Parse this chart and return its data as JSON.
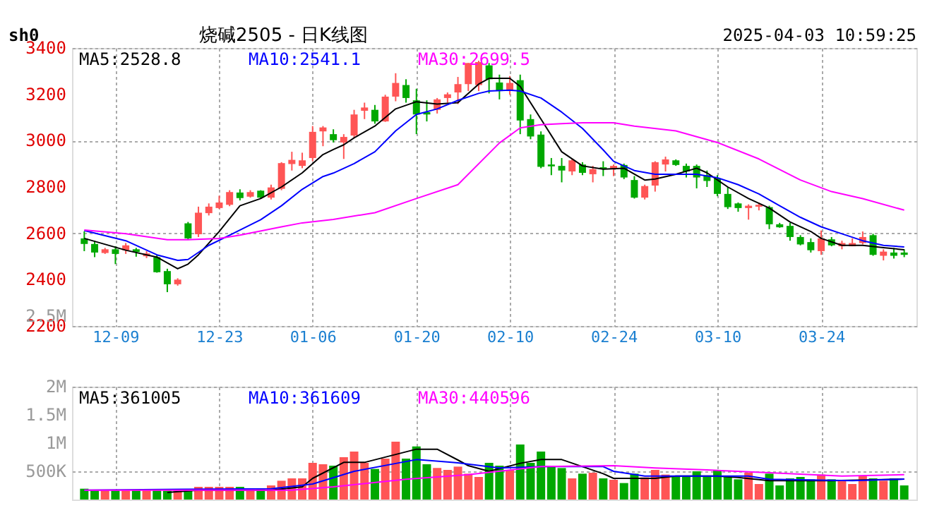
{
  "chart_data": [
    {
      "type": "candlestick",
      "title": "烧碱2505 - 日K线图",
      "annotations": [
        "sh0",
        "2025-04-03 10:59:25",
        "2.5M"
      ],
      "categories": [
        null,
        null,
        null,
        "12-09",
        null,
        null,
        null,
        null,
        null,
        null,
        null,
        null,
        null,
        "12-23",
        null,
        null,
        null,
        null,
        null,
        null,
        null,
        null,
        "01-06",
        null,
        null,
        null,
        null,
        null,
        null,
        null,
        null,
        null,
        "01-20",
        null,
        null,
        null,
        null,
        null,
        null,
        null,
        null,
        "02-10",
        null,
        null,
        null,
        null,
        null,
        null,
        null,
        null,
        null,
        "02-24",
        null,
        null,
        null,
        null,
        null,
        null,
        null,
        null,
        null,
        "03-10",
        null,
        null,
        null,
        null,
        null,
        null,
        null,
        null,
        null,
        "03-24",
        null,
        null,
        null,
        null,
        null,
        null,
        null,
        null
      ],
      "ohlc": [
        [
          2578,
          2608,
          2523,
          2554
        ],
        [
          2554,
          2568,
          2497,
          2517
        ],
        [
          2515,
          2537,
          2511,
          2531
        ],
        [
          2531,
          2544,
          2467,
          2511
        ],
        [
          2527,
          2558,
          2511,
          2548
        ],
        [
          2531,
          2537,
          2499,
          2519
        ],
        [
          2501,
          2523,
          2493,
          2513
        ],
        [
          2497,
          2507,
          2430,
          2432
        ],
        [
          2437,
          2447,
          2346,
          2380
        ],
        [
          2380,
          2406,
          2374,
          2400
        ],
        [
          2643,
          2649,
          2574,
          2578
        ],
        [
          2596,
          2715,
          2584,
          2689
        ],
        [
          2687,
          2729,
          2677,
          2715
        ],
        [
          2709,
          2762,
          2705,
          2733
        ],
        [
          2723,
          2786,
          2717,
          2778
        ],
        [
          2776,
          2790,
          2742,
          2752
        ],
        [
          2758,
          2786,
          2754,
          2778
        ],
        [
          2784,
          2786,
          2750,
          2754
        ],
        [
          2754,
          2810,
          2746,
          2798
        ],
        [
          2792,
          2907,
          2786,
          2903
        ],
        [
          2899,
          2952,
          2871,
          2917
        ],
        [
          2891,
          2948,
          2881,
          2915
        ],
        [
          2925,
          3063,
          2911,
          3038
        ],
        [
          3040,
          3063,
          2976,
          3057
        ],
        [
          3028,
          3049,
          2992,
          3002
        ],
        [
          2992,
          3028,
          2921,
          3016
        ],
        [
          3022,
          3133,
          3012,
          3113
        ],
        [
          3129,
          3164,
          3093,
          3143
        ],
        [
          3133,
          3154,
          3073,
          3083
        ],
        [
          3083,
          3198,
          3081,
          3190
        ],
        [
          3190,
          3291,
          3170,
          3249
        ],
        [
          3240,
          3265,
          3164,
          3184
        ],
        [
          3174,
          3224,
          3028,
          3113
        ],
        [
          3123,
          3174,
          3083,
          3113
        ],
        [
          3133,
          3184,
          3117,
          3178
        ],
        [
          3184,
          3208,
          3164,
          3200
        ],
        [
          3208,
          3275,
          3158,
          3244
        ],
        [
          3244,
          3335,
          3214,
          3335
        ],
        [
          3240,
          3345,
          3214,
          3339
        ],
        [
          3325,
          3335,
          3204,
          3265
        ],
        [
          3251,
          3285,
          3178,
          3214
        ],
        [
          3214,
          3279,
          3198,
          3249
        ],
        [
          3261,
          3285,
          3028,
          3087
        ],
        [
          3093,
          3113,
          3006,
          3018
        ],
        [
          3026,
          3040,
          2881,
          2887
        ],
        [
          2897,
          2925,
          2851,
          2889
        ],
        [
          2891,
          2925,
          2820,
          2871
        ],
        [
          2867,
          2921,
          2851,
          2915
        ],
        [
          2897,
          2907,
          2851,
          2861
        ],
        [
          2855,
          2891,
          2820,
          2877
        ],
        [
          2885,
          2911,
          2847,
          2879
        ],
        [
          2879,
          2897,
          2847,
          2891
        ],
        [
          2895,
          2901,
          2834,
          2841
        ],
        [
          2830,
          2847,
          2750,
          2754
        ],
        [
          2754,
          2810,
          2746,
          2804
        ],
        [
          2806,
          2911,
          2780,
          2907
        ],
        [
          2897,
          2931,
          2867,
          2919
        ],
        [
          2915,
          2919,
          2891,
          2895
        ],
        [
          2891,
          2901,
          2841,
          2867
        ],
        [
          2891,
          2897,
          2794,
          2841
        ],
        [
          2851,
          2871,
          2800,
          2826
        ],
        [
          2836,
          2851,
          2760,
          2770
        ],
        [
          2770,
          2800,
          2705,
          2713
        ],
        [
          2729,
          2733,
          2693,
          2709
        ],
        [
          2709,
          2725,
          2659,
          2719
        ],
        [
          2715,
          2733,
          2699,
          2723
        ],
        [
          2713,
          2719,
          2618,
          2639
        ],
        [
          2639,
          2645,
          2624,
          2626
        ],
        [
          2632,
          2645,
          2568,
          2584
        ],
        [
          2584,
          2592,
          2548,
          2552
        ],
        [
          2562,
          2578,
          2517,
          2527
        ],
        [
          2523,
          2612,
          2507,
          2578
        ],
        [
          2574,
          2584,
          2544,
          2548
        ],
        [
          2544,
          2568,
          2531,
          2558
        ],
        [
          2544,
          2578,
          2544,
          2558
        ],
        [
          2558,
          2608,
          2552,
          2584
        ],
        [
          2592,
          2598,
          2503,
          2507
        ],
        [
          2503,
          2531,
          2483,
          2521
        ],
        [
          2517,
          2537,
          2491,
          2503
        ],
        [
          2517,
          2531,
          2497,
          2507
        ]
      ],
      "colors": [
        "#00a800",
        "#00a800",
        "#ff5555",
        "#00a800",
        "#ff5555",
        "#00a800",
        "#ff5555",
        "#00a800",
        "#00a800",
        "#ff5555",
        "#00a800",
        "#ff5555",
        "#ff5555",
        "#ff5555",
        "#ff5555",
        "#00a800",
        "#ff5555",
        "#00a800",
        "#ff5555",
        "#ff5555",
        "#ff5555",
        "#ff5555",
        "#ff5555",
        "#ff5555",
        "#00a800",
        "#ff5555",
        "#ff5555",
        "#ff5555",
        "#00a800",
        "#ff5555",
        "#ff5555",
        "#00a800",
        "#00a800",
        "#00a800",
        "#ff5555",
        "#ff5555",
        "#ff5555",
        "#ff5555",
        "#ff5555",
        "#00a800",
        "#00a800",
        "#ff5555",
        "#00a800",
        "#00a800",
        "#00a800",
        "#00a800",
        "#00a800",
        "#ff5555",
        "#00a800",
        "#ff5555",
        "#00a800",
        "#ff5555",
        "#00a800",
        "#00a800",
        "#ff5555",
        "#ff5555",
        "#ff5555",
        "#00a800",
        "#00a800",
        "#00a800",
        "#00a800",
        "#00a800",
        "#00a800",
        "#00a800",
        "#ff5555",
        "#ff5555",
        "#00a800",
        "#00a800",
        "#00a800",
        "#00a800",
        "#00a800",
        "#ff5555",
        "#00a800",
        "#ff5555",
        "#ff5555",
        "#ff5555",
        "#00a800",
        "#ff5555",
        "#00a800",
        "#00a800"
      ],
      "series": [
        {
          "type": "line",
          "name": "MA5:2528.8",
          "color": "#000000",
          "values": [
            2578,
            null,
            null,
            null,
            2527,
            null,
            null,
            2497,
            null,
            2447,
            2467,
            2507,
            null,
            2608,
            null,
            2719,
            null,
            2750,
            null,
            2800,
            null,
            2861,
            null,
            2940,
            2962,
            2982,
            3012,
            null,
            3063,
            null,
            3137,
            null,
            3168,
            null,
            3158,
            null,
            3164,
            null,
            3244,
            3269,
            null,
            3269,
            3234,
            null,
            3093,
            null,
            2952,
            null,
            2891,
            null,
            2877,
            null,
            2881,
            null,
            2830,
            2834,
            null,
            2855,
            null,
            2881,
            2861,
            null,
            2800,
            null,
            2750,
            null,
            2709,
            null,
            2649,
            null,
            2608,
            2578,
            null,
            2548,
            null,
            2548,
            null,
            2538,
            null,
            2529
          ]
        },
        {
          "type": "line",
          "name": "MA10:2541.1",
          "color": "#0000ff",
          "values": [
            2612,
            null,
            null,
            null,
            2568,
            null,
            null,
            2507,
            null,
            2483,
            2487,
            null,
            2548,
            null,
            2592,
            null,
            null,
            2659,
            null,
            2719,
            null,
            2790,
            null,
            2845,
            2860,
            null,
            2901,
            null,
            2952,
            null,
            3042,
            null,
            3113,
            null,
            3137,
            null,
            3174,
            null,
            3204,
            3214,
            null,
            3218,
            3214,
            null,
            3184,
            null,
            3123,
            null,
            3053,
            null,
            2960,
            2911,
            null,
            2871,
            null,
            2855,
            null,
            2855,
            null,
            2855,
            null,
            2840,
            null,
            2810,
            null,
            2770,
            null,
            2719,
            null,
            2669,
            null,
            2628,
            null,
            2598,
            null,
            2568,
            null,
            2548,
            null,
            2541
          ]
        },
        {
          "type": "line",
          "name": "MA30:2699.5",
          "color": "#ff00ff",
          "values": [
            2614,
            null,
            null,
            null,
            2598,
            null,
            null,
            null,
            2572,
            null,
            2572,
            null,
            null,
            2578,
            null,
            2592,
            null,
            null,
            null,
            2628,
            null,
            2645,
            null,
            null,
            2660,
            null,
            null,
            null,
            2689,
            null,
            null,
            null,
            2750,
            null,
            null,
            null,
            2810,
            null,
            null,
            null,
            2990,
            null,
            3055,
            null,
            3069,
            null,
            3073,
            null,
            3077,
            null,
            null,
            3077,
            null,
            3063,
            null,
            null,
            null,
            3042,
            null,
            null,
            null,
            2992,
            null,
            null,
            null,
            2921,
            null,
            null,
            null,
            2830,
            null,
            null,
            2780,
            null,
            null,
            2750,
            null,
            null,
            null,
            2700
          ]
        }
      ],
      "ylim": [
        2200,
        3400
      ],
      "yticks": [
        2200,
        2400,
        2600,
        2800,
        3000,
        3200,
        3400
      ],
      "grid": true
    },
    {
      "type": "bar",
      "tick_labels": "y",
      "categories": [
        null,
        null,
        null,
        null,
        null,
        null,
        null,
        null,
        null,
        null,
        null,
        null,
        null,
        null,
        null,
        null,
        null,
        null,
        null,
        null,
        null,
        null,
        null,
        null,
        null,
        null,
        null,
        null,
        null,
        null,
        null,
        null,
        null,
        null,
        null,
        null,
        null,
        null,
        null,
        null,
        null,
        null,
        null,
        null,
        null,
        null,
        null,
        null,
        null,
        null,
        null,
        null,
        null,
        null,
        null,
        null,
        null,
        null,
        null,
        null,
        null,
        null,
        null,
        null,
        null,
        null,
        null,
        null,
        null,
        null,
        null,
        null,
        null,
        null,
        null,
        null,
        null,
        null,
        null,
        null
      ],
      "values": [
        192000,
        167000,
        167000,
        167000,
        167000,
        167000,
        175000,
        175000,
        158000,
        158000,
        175000,
        225000,
        225000,
        225000,
        225000,
        225000,
        192000,
        192000,
        250000,
        333000,
        375000,
        375000,
        650000,
        625000,
        600000,
        750000,
        850000,
        650000,
        542000,
        725000,
        1025000,
        725000,
        942000,
        625000,
        558000,
        525000,
        583000,
        458000,
        400000,
        650000,
        600000,
        525000,
        975000,
        650000,
        850000,
        600000,
        558000,
        375000,
        458000,
        475000,
        375000,
        350000,
        292000,
        458000,
        392000,
        525000,
        442000,
        417000,
        417000,
        500000,
        417000,
        525000,
        417000,
        358000,
        475000,
        275000,
        458000,
        250000,
        375000,
        400000,
        358000,
        442000,
        358000,
        333000,
        275000,
        417000,
        375000,
        333000,
        375000,
        250000
      ],
      "colors": [
        "#00a800",
        "#00a800",
        "#ff5555",
        "#00a800",
        "#ff5555",
        "#00a800",
        "#ff5555",
        "#00a800",
        "#00a800",
        "#ff5555",
        "#00a800",
        "#ff5555",
        "#ff5555",
        "#ff5555",
        "#ff5555",
        "#00a800",
        "#ff5555",
        "#00a800",
        "#ff5555",
        "#ff5555",
        "#ff5555",
        "#ff5555",
        "#ff5555",
        "#ff5555",
        "#00a800",
        "#ff5555",
        "#ff5555",
        "#ff5555",
        "#00a800",
        "#ff5555",
        "#ff5555",
        "#00a800",
        "#00a800",
        "#00a800",
        "#ff5555",
        "#ff5555",
        "#ff5555",
        "#ff5555",
        "#ff5555",
        "#00a800",
        "#00a800",
        "#ff5555",
        "#00a800",
        "#00a800",
        "#00a800",
        "#00a800",
        "#00a800",
        "#ff5555",
        "#00a800",
        "#ff5555",
        "#00a800",
        "#ff5555",
        "#00a800",
        "#00a800",
        "#ff5555",
        "#ff5555",
        "#ff5555",
        "#00a800",
        "#00a800",
        "#00a800",
        "#00a800",
        "#00a800",
        "#00a800",
        "#00a800",
        "#ff5555",
        "#ff5555",
        "#00a800",
        "#00a800",
        "#00a800",
        "#00a800",
        "#00a800",
        "#ff5555",
        "#00a800",
        "#ff5555",
        "#ff5555",
        "#ff5555",
        "#00a800",
        "#ff5555",
        "#00a800",
        "#00a800"
      ],
      "series": [
        {
          "type": "line",
          "name": "MA5:361005",
          "color": "#000000",
          "values": [
            null,
            null,
            null,
            null,
            null,
            null,
            null,
            null,
            125000,
            null,
            null,
            167000,
            null,
            null,
            null,
            null,
            null,
            null,
            167000,
            null,
            null,
            225000,
            375000,
            null,
            null,
            658000,
            null,
            658000,
            null,
            null,
            null,
            null,
            892000,
            null,
            892000,
            null,
            700000,
            600000,
            null,
            500000,
            null,
            null,
            642000,
            null,
            708000,
            null,
            708000,
            null,
            583000,
            null,
            458000,
            375000,
            null,
            null,
            null,
            375000,
            null,
            417000,
            null,
            null,
            null,
            417000,
            null,
            392000,
            null,
            null,
            333000,
            null,
            null,
            333000,
            null,
            null,
            333000,
            null,
            null,
            null,
            null,
            null,
            null,
            361005
          ]
        },
        {
          "type": "line",
          "name": "MA10:361609",
          "color": "#0000ff",
          "values": [
            167000,
            null,
            null,
            null,
            null,
            null,
            null,
            null,
            null,
            null,
            null,
            null,
            null,
            null,
            null,
            null,
            null,
            null,
            192000,
            null,
            null,
            null,
            275000,
            null,
            null,
            null,
            500000,
            null,
            null,
            null,
            null,
            null,
            708000,
            null,
            null,
            667000,
            650000,
            null,
            null,
            null,
            558000,
            null,
            null,
            null,
            583000,
            null,
            null,
            null,
            null,
            null,
            583000,
            500000,
            null,
            null,
            417000,
            null,
            null,
            null,
            null,
            null,
            417000,
            null,
            null,
            null,
            417000,
            null,
            358000,
            null,
            null,
            null,
            null,
            null,
            null,
            null,
            333000,
            null,
            null,
            null,
            null,
            361609
          ]
        },
        {
          "type": "line",
          "name": "MA30:440596",
          "color": "#ff00ff",
          "values": [
            167000,
            null,
            null,
            null,
            null,
            null,
            null,
            null,
            null,
            null,
            null,
            null,
            null,
            null,
            null,
            null,
            null,
            null,
            null,
            null,
            167000,
            null,
            null,
            null,
            225000,
            null,
            null,
            null,
            null,
            null,
            null,
            358000,
            null,
            null,
            null,
            null,
            null,
            442000,
            null,
            null,
            null,
            null,
            null,
            null,
            583000,
            null,
            null,
            null,
            null,
            null,
            null,
            600000,
            null,
            null,
            null,
            558000,
            null,
            null,
            null,
            null,
            525000,
            null,
            null,
            null,
            null,
            null,
            475000,
            null,
            null,
            null,
            null,
            null,
            null,
            417000,
            null,
            null,
            null,
            null,
            null,
            440596
          ]
        }
      ],
      "ylim": [
        0,
        2000000
      ],
      "yticks": [
        {
          "value": 500000,
          "label": "500K"
        },
        {
          "value": 1000000,
          "label": "1M"
        },
        {
          "value": 1500000,
          "label": "1.5M"
        },
        {
          "value": 2000000,
          "label": "2M"
        }
      ],
      "grid": true
    }
  ]
}
